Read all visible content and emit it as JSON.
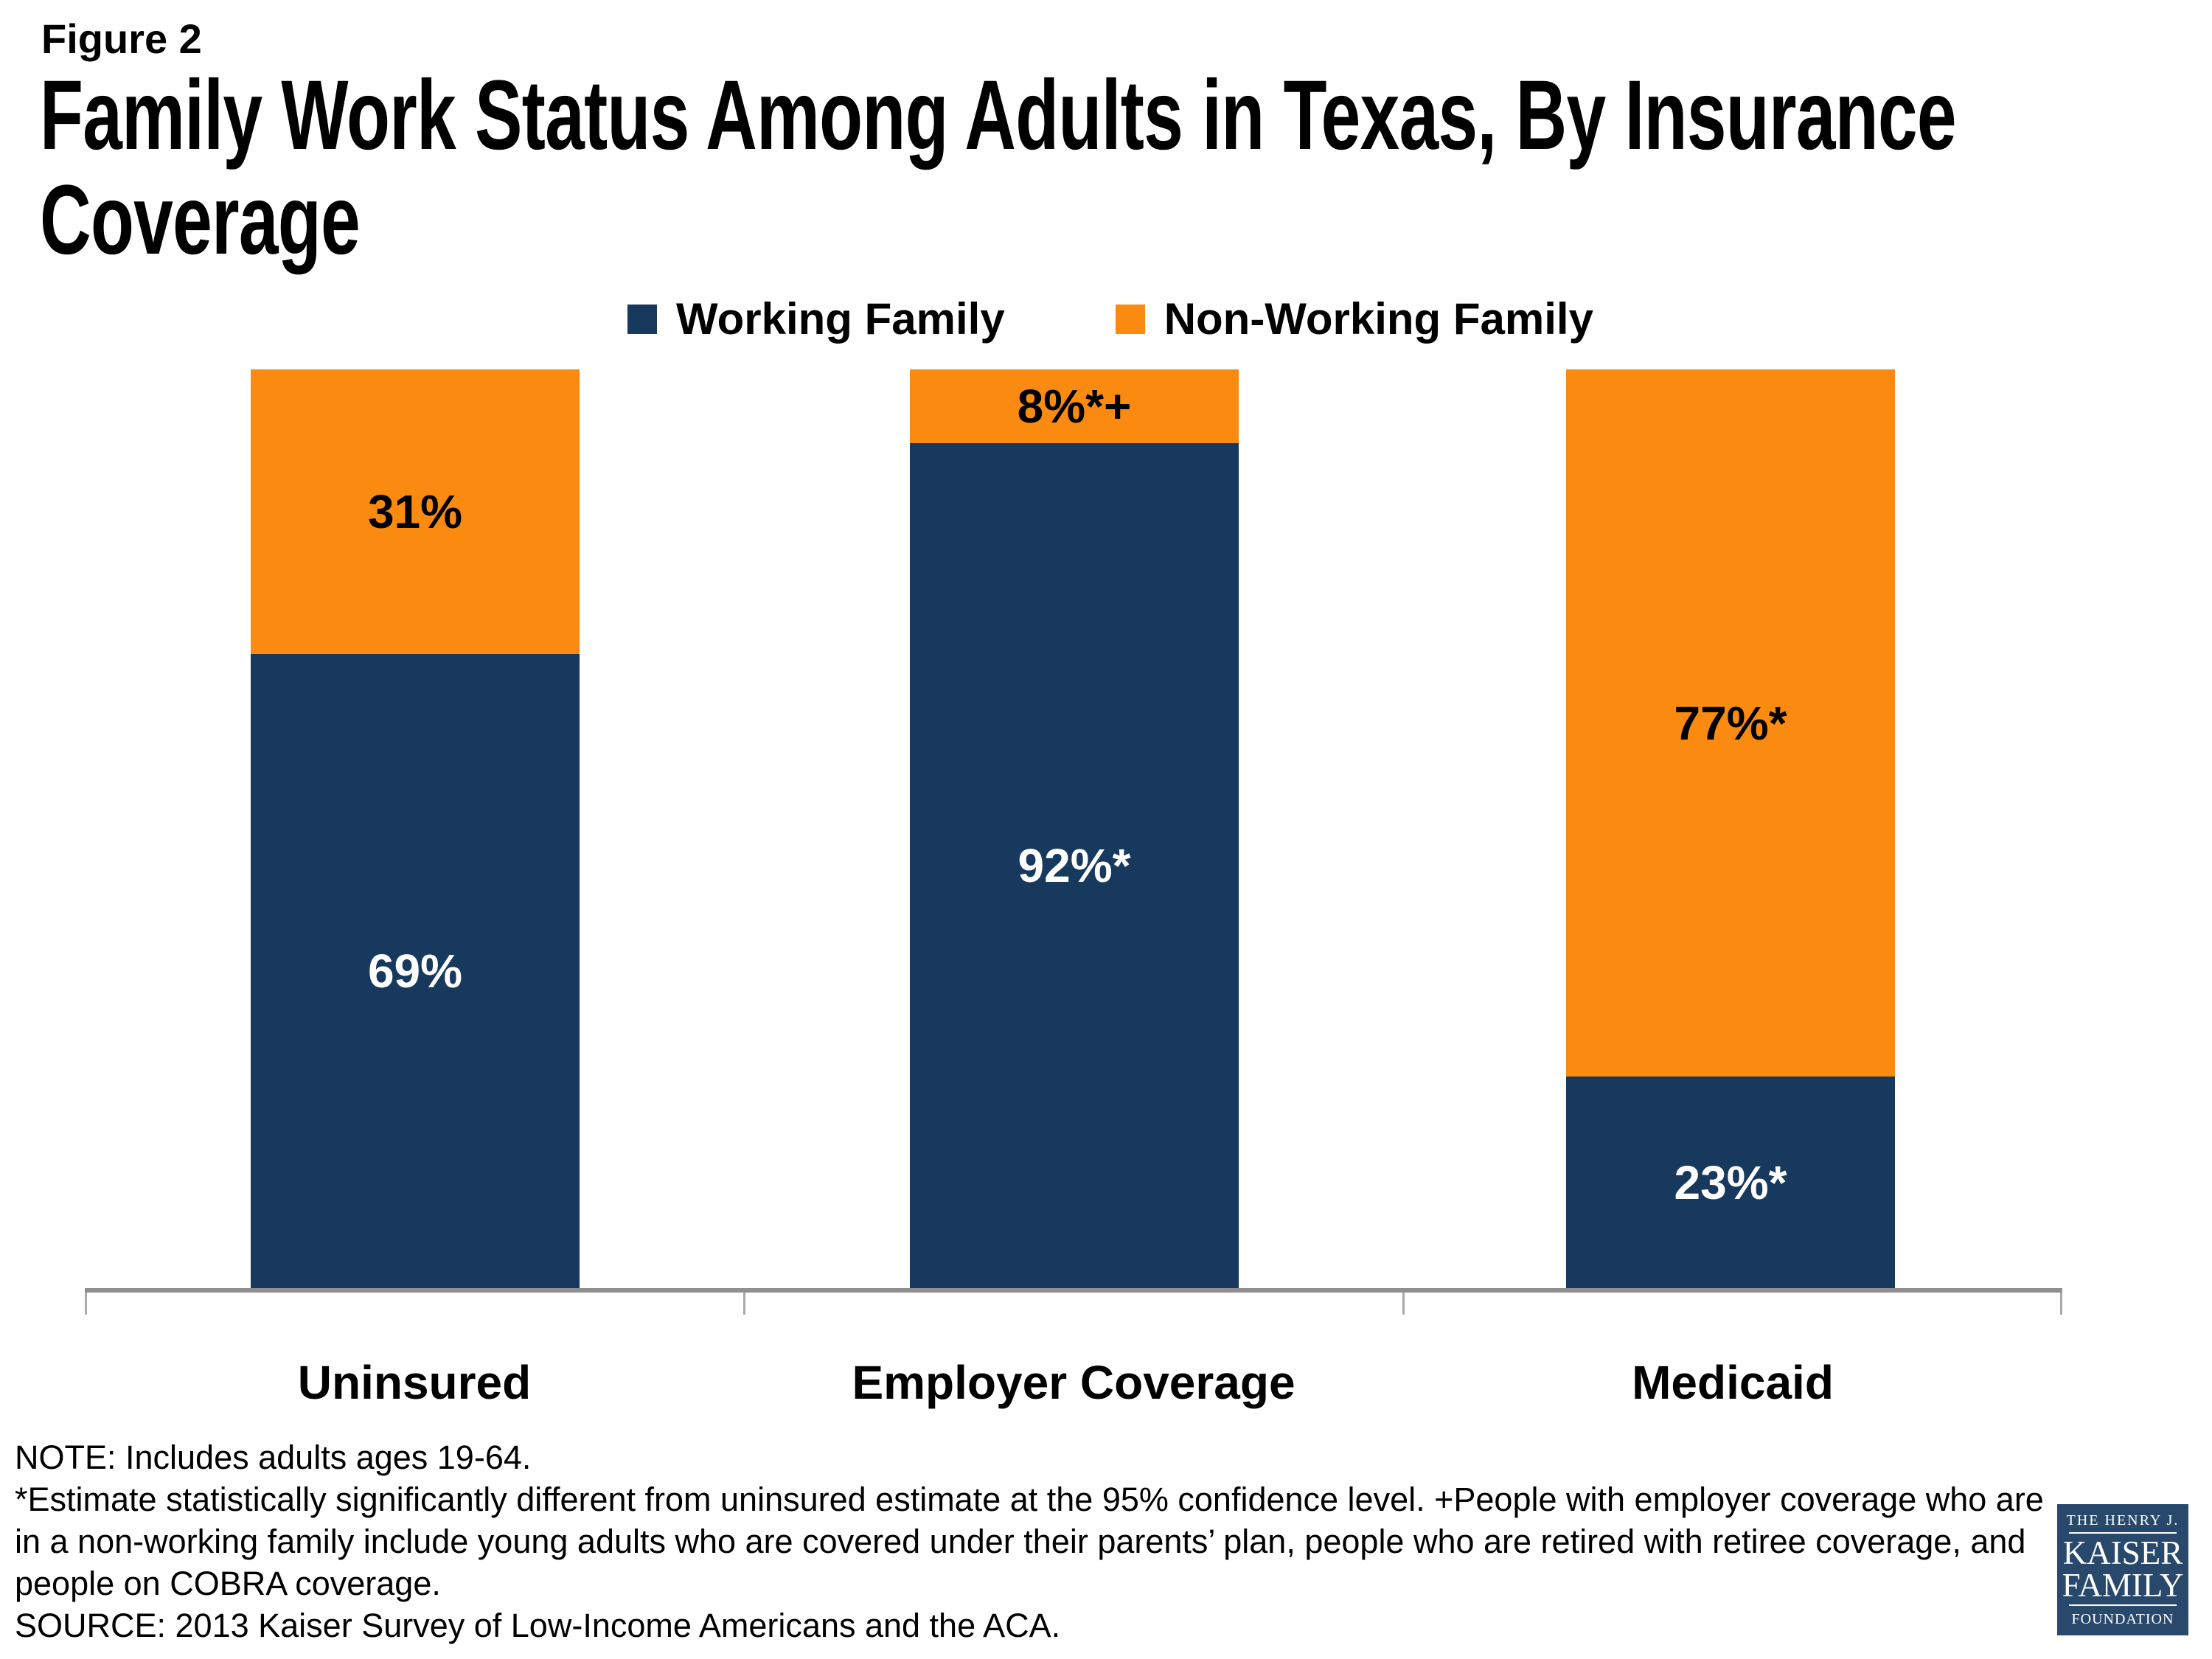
{
  "header": {
    "figure_label": "Figure 2",
    "title": "Family Work Status Among Adults in Texas, By Insurance Coverage",
    "title_lines": [
      "Family Work Status Among Adults in Texas, By Insurance",
      "Coverage"
    ]
  },
  "colors": {
    "navy": "#17395d",
    "orange": "#fb8b10",
    "axis_gray": "#8f8f8f",
    "tick_gray": "#a9a9a9",
    "logo_navy": "#28486c"
  },
  "chart_data": {
    "type": "bar",
    "subtype": "stacked-100-percent",
    "title": "Family Work Status Among Adults in Texas, By Insurance Coverage",
    "categories": [
      "Uninsured",
      "Employer Coverage",
      "Medicaid"
    ],
    "series": [
      {
        "name": "Working Family",
        "color": "#17395d",
        "values": [
          69,
          92,
          23
        ],
        "labels": [
          "69%",
          "92%*",
          "23%*"
        ]
      },
      {
        "name": "Non-Working Family",
        "color": "#fb8b10",
        "values": [
          31,
          8,
          77
        ],
        "labels": [
          "31%",
          "8%*+",
          "77%*"
        ]
      }
    ],
    "ylim": [
      0,
      100
    ],
    "grid": false,
    "legend_position": "top",
    "stack_order_top_to_bottom": [
      "Non-Working Family",
      "Working Family"
    ]
  },
  "notes": {
    "note": "NOTE: Includes adults ages 19-64.",
    "footnote": "*Estimate statistically significantly different from uninsured estimate at the 95% confidence level. +People with employer coverage who are in a non-working family include young adults who are covered under their parents’ plan, people who are retired with retiree coverage, and people on COBRA coverage.",
    "source": "SOURCE: 2013 Kaiser Survey of Low-Income Americans and the ACA."
  },
  "logo": {
    "line1": "THE HENRY J.",
    "line2": "KAISER",
    "line3": "FAMILY",
    "line4": "FOUNDATION"
  }
}
